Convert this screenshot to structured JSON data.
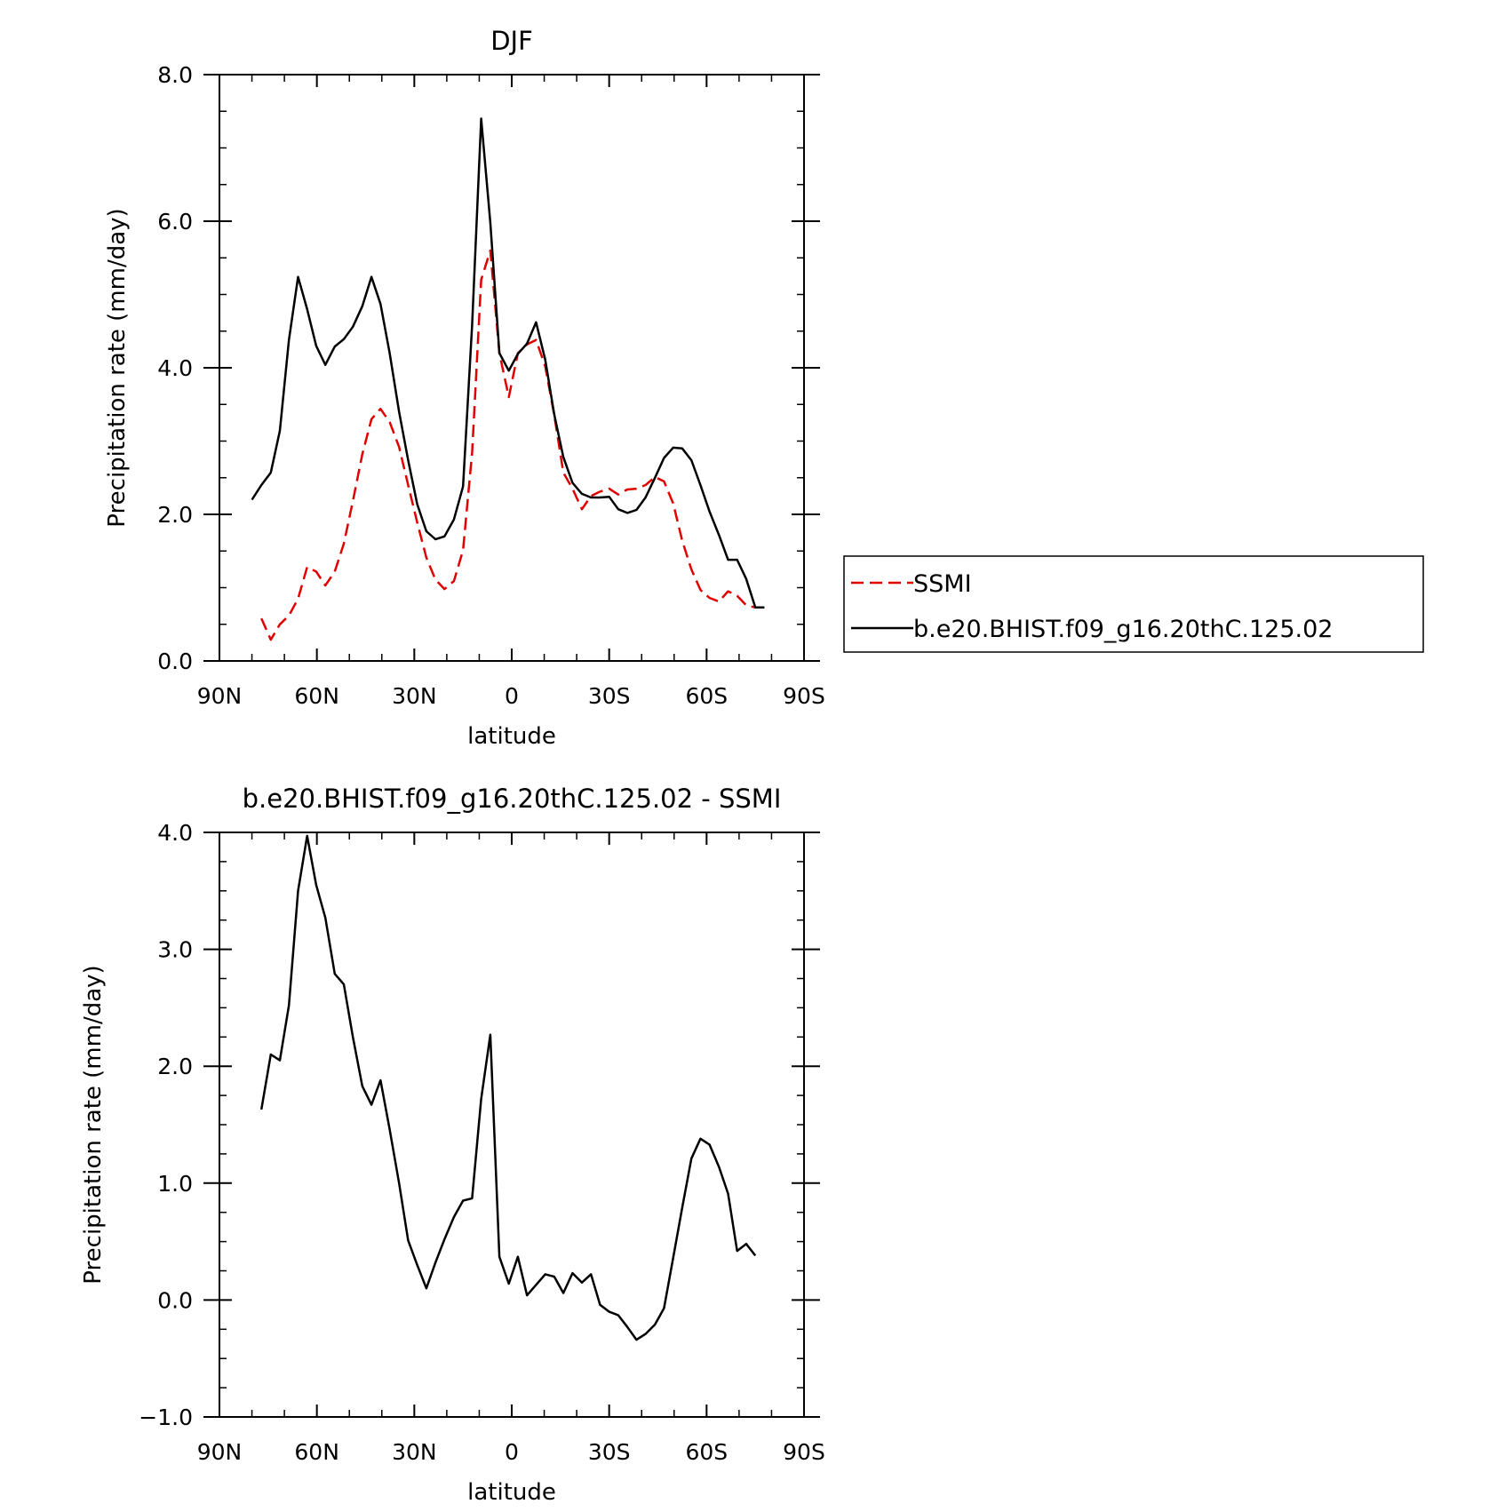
{
  "chart_data": [
    {
      "type": "line",
      "title": "DJF",
      "xlabel": "latitude",
      "ylabel": "Precipitation rate (mm/day)",
      "xlim": [
        90,
        -90
      ],
      "ylim": [
        0,
        8
      ],
      "x_ticks": [
        90,
        60,
        30,
        0,
        -30,
        -60,
        -90
      ],
      "x_tick_labels": [
        "90N",
        "60N",
        "30N",
        "0",
        "30S",
        "60S",
        "90S"
      ],
      "y_ticks": [
        0,
        2,
        4,
        6,
        8
      ],
      "y_tick_labels": [
        "0.0",
        "2.0",
        "4.0",
        "6.0",
        "8.0"
      ],
      "legend": {
        "placement": "right",
        "entries": [
          "SSMI",
          "b.e20.BHIST.f09_g16.20thC.125.02"
        ]
      },
      "series": [
        {
          "name": "SSMI",
          "color": "#e00000",
          "dash": true,
          "x": [
            77.1,
            74.2,
            71.4,
            68.6,
            65.8,
            63.0,
            60.2,
            57.4,
            54.5,
            51.7,
            48.9,
            46.0,
            43.2,
            40.4,
            37.6,
            34.7,
            31.9,
            29.1,
            26.3,
            23.5,
            20.7,
            17.8,
            15.0,
            12.2,
            9.4,
            6.6,
            3.8,
            0.9,
            -1.9,
            -4.7,
            -7.5,
            -10.3,
            -13.1,
            -15.9,
            -18.7,
            -21.6,
            -24.4,
            -27.2,
            -30.0,
            -32.8,
            -35.6,
            -38.4,
            -41.2,
            -44.1,
            -46.9,
            -49.7,
            -52.5,
            -55.3,
            -58.1,
            -60.9,
            -63.8,
            -66.6,
            -69.4,
            -72.2,
            -75.0
          ],
          "y": [
            0.58,
            0.29,
            0.5,
            0.62,
            0.85,
            1.28,
            1.22,
            1.03,
            1.22,
            1.6,
            2.18,
            2.82,
            3.3,
            3.44,
            3.26,
            2.92,
            2.4,
            1.89,
            1.41,
            1.11,
            0.98,
            1.09,
            1.51,
            2.84,
            5.2,
            5.6,
            4.2,
            3.6,
            4.2,
            4.32,
            4.38,
            4.02,
            3.35,
            2.57,
            2.35,
            2.07,
            2.25,
            2.31,
            2.35,
            2.27,
            2.34,
            2.35,
            2.4,
            2.51,
            2.45,
            2.15,
            1.64,
            1.25,
            0.97,
            0.86,
            0.81,
            0.95,
            0.89,
            0.76,
            0.73
          ]
        },
        {
          "name": "b.e20.BHIST.f09_g16.20thC.125.02",
          "color": "#000000",
          "dash": false,
          "x": [
            80.0,
            77.1,
            74.2,
            71.4,
            68.6,
            65.8,
            63.0,
            60.2,
            57.4,
            54.5,
            51.7,
            48.9,
            46.0,
            43.2,
            40.4,
            37.6,
            34.7,
            31.9,
            29.1,
            26.3,
            23.5,
            20.7,
            17.8,
            15.0,
            12.2,
            9.4,
            6.6,
            3.8,
            0.9,
            -1.9,
            -4.7,
            -7.5,
            -10.3,
            -13.1,
            -15.9,
            -18.7,
            -21.6,
            -24.4,
            -27.2,
            -30.0,
            -32.8,
            -35.6,
            -38.4,
            -41.2,
            -44.1,
            -46.9,
            -49.7,
            -52.5,
            -55.3,
            -58.1,
            -60.9,
            -63.8,
            -66.6,
            -69.4,
            -72.2,
            -75.0,
            -77.8
          ],
          "y": [
            2.2,
            2.4,
            2.57,
            3.14,
            4.38,
            5.24,
            4.8,
            4.3,
            4.04,
            4.29,
            4.39,
            4.56,
            4.84,
            5.24,
            4.87,
            4.2,
            3.4,
            2.74,
            2.14,
            1.77,
            1.66,
            1.7,
            1.93,
            2.38,
            4.58,
            7.4,
            5.98,
            4.2,
            3.96,
            4.19,
            4.33,
            4.62,
            4.11,
            3.36,
            2.78,
            2.43,
            2.28,
            2.23,
            2.23,
            2.24,
            2.07,
            2.02,
            2.06,
            2.23,
            2.5,
            2.77,
            2.91,
            2.9,
            2.74,
            2.4,
            2.04,
            1.72,
            1.38,
            1.38,
            1.12,
            0.73,
            0.73
          ]
        }
      ]
    },
    {
      "type": "line",
      "title": "b.e20.BHIST.f09_g16.20thC.125.02 - SSMI",
      "xlabel": "latitude",
      "ylabel": "Precipitation rate (mm/day)",
      "xlim": [
        90,
        -90
      ],
      "ylim": [
        -1,
        4
      ],
      "x_ticks": [
        90,
        60,
        30,
        0,
        -30,
        -60,
        -90
      ],
      "x_tick_labels": [
        "90N",
        "60N",
        "30N",
        "0",
        "30S",
        "60S",
        "90S"
      ],
      "y_ticks": [
        -1,
        0,
        1,
        2,
        3,
        4
      ],
      "y_tick_labels": [
        "−1.0",
        "0.0",
        "1.0",
        "2.0",
        "3.0",
        "4.0"
      ],
      "series": [
        {
          "color": "#000000",
          "dash": false,
          "x": [
            77.1,
            74.2,
            71.4,
            68.6,
            65.8,
            63.0,
            60.2,
            57.4,
            54.5,
            51.7,
            48.9,
            46.0,
            43.2,
            40.4,
            37.6,
            34.7,
            31.9,
            29.1,
            26.3,
            23.5,
            20.7,
            17.8,
            15.0,
            12.2,
            9.4,
            6.6,
            3.8,
            0.9,
            -1.9,
            -4.7,
            -7.5,
            -10.3,
            -13.1,
            -15.9,
            -18.7,
            -21.6,
            -24.4,
            -27.2,
            -30.0,
            -32.8,
            -35.6,
            -38.4,
            -41.2,
            -44.1,
            -46.9,
            -49.7,
            -52.5,
            -55.3,
            -58.1,
            -60.9,
            -63.8,
            -66.6,
            -69.4,
            -72.2,
            -75.0
          ],
          "y": [
            1.63,
            2.1,
            2.05,
            2.52,
            3.5,
            3.97,
            3.55,
            3.27,
            2.79,
            2.7,
            2.25,
            1.83,
            1.67,
            1.88,
            1.46,
            1.0,
            0.51,
            0.3,
            0.1,
            0.32,
            0.52,
            0.71,
            0.85,
            0.87,
            1.72,
            2.27,
            0.37,
            0.14,
            0.37,
            0.04,
            0.13,
            0.22,
            0.2,
            0.06,
            0.23,
            0.15,
            0.22,
            -0.04,
            -0.1,
            -0.13,
            -0.23,
            -0.34,
            -0.29,
            -0.21,
            -0.07,
            0.36,
            0.79,
            1.21,
            1.38,
            1.33,
            1.14,
            0.91,
            0.42,
            0.48,
            0.38
          ]
        }
      ]
    }
  ]
}
